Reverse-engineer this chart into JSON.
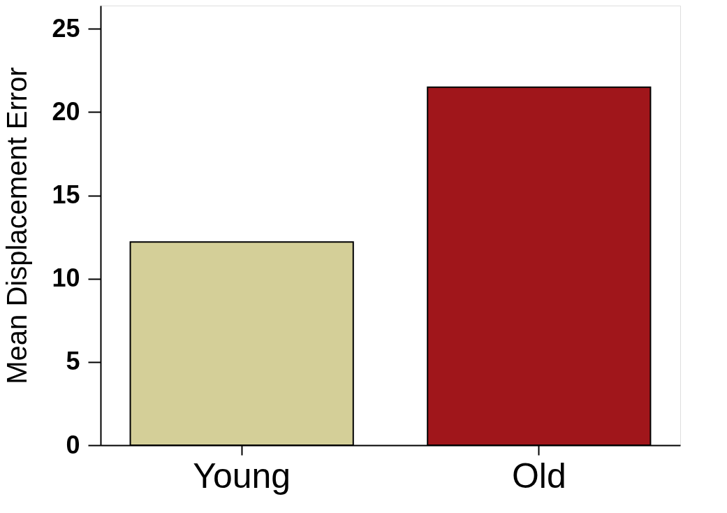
{
  "chart_data": {
    "type": "bar",
    "ylabel": "Mean Displacement Error",
    "categories": [
      "Young",
      "Old"
    ],
    "values": [
      12.2,
      21.5
    ],
    "colors": [
      "#d4cf98",
      "#a0161b"
    ],
    "ylim": [
      0,
      26.4
    ],
    "yticks": [
      0,
      5,
      10,
      15,
      20,
      25
    ],
    "grid": false,
    "legend": false
  }
}
